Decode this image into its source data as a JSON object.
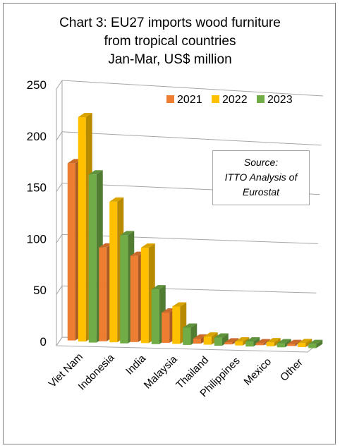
{
  "chart_data": {
    "type": "bar",
    "title": "Chart 3: EU27 imports wood furniture",
    "subtitle": "from tropical countries",
    "subtitle2": "Jan-Mar, US$ million",
    "categories": [
      "Viet Nam",
      "Indonesia",
      "India",
      "Malaysia",
      "Thailand",
      "Philippines",
      "Mexico",
      "Other"
    ],
    "series": [
      {
        "name": "2021",
        "color": "#ED7D31",
        "values": [
          173,
          92,
          85,
          30,
          5,
          2,
          2,
          2
        ]
      },
      {
        "name": "2022",
        "color": "#FFC000",
        "values": [
          218,
          137,
          93,
          36,
          7,
          3,
          3,
          3
        ]
      },
      {
        "name": "2023",
        "color": "#70AD47",
        "values": [
          162,
          104,
          52,
          15,
          6,
          3,
          2,
          2
        ]
      }
    ],
    "y_ticks": [
      "0",
      "50",
      "100",
      "150",
      "200",
      "250"
    ],
    "ylim": [
      0,
      250
    ],
    "grid": true,
    "legend": "top-right",
    "annotation": [
      "Source:",
      "ITTO Analysis of",
      "Eurostat"
    ]
  }
}
